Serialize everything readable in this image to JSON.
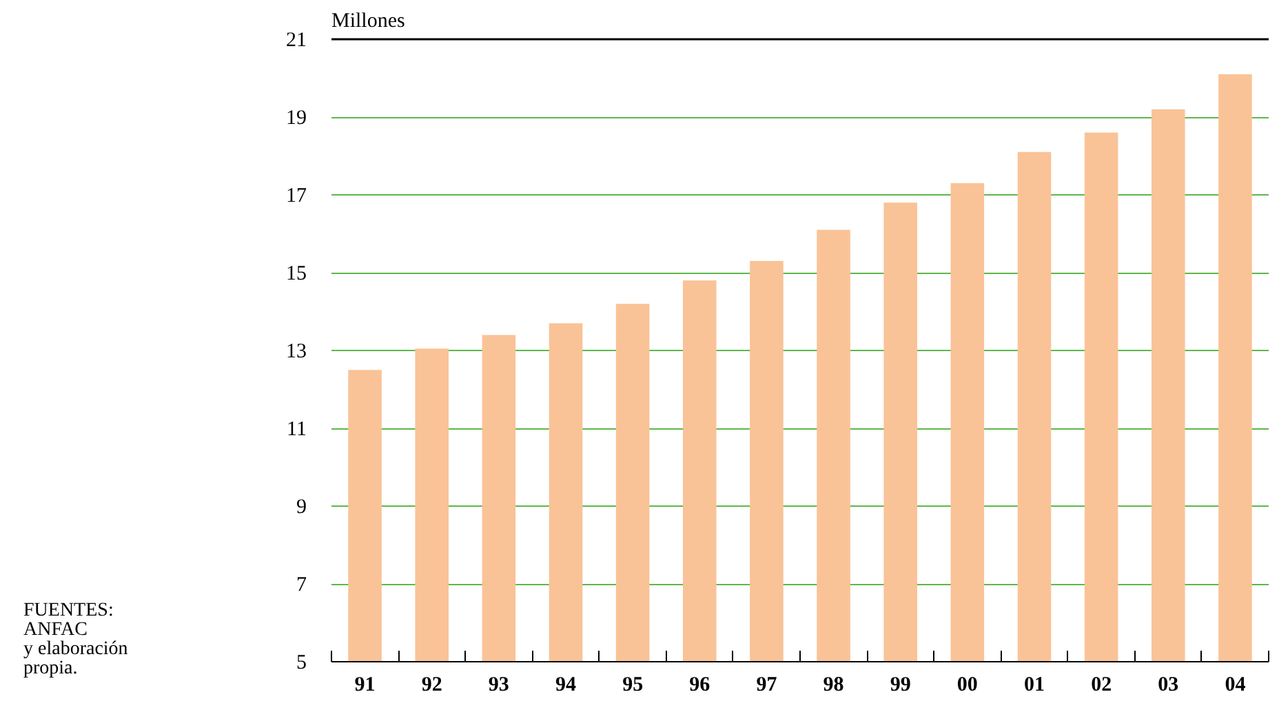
{
  "chart_data": {
    "type": "bar",
    "ylabel": "Millones",
    "categories": [
      "91",
      "92",
      "93",
      "94",
      "95",
      "96",
      "97",
      "98",
      "99",
      "00",
      "01",
      "02",
      "03",
      "04"
    ],
    "values": [
      12.5,
      13.05,
      13.4,
      13.7,
      14.2,
      14.8,
      15.3,
      16.1,
      16.8,
      17.3,
      18.1,
      18.6,
      19.2,
      20.1
    ],
    "color": "#f9c397",
    "ylim": [
      5,
      21
    ],
    "yticks": [
      5,
      7,
      9,
      11,
      13,
      15,
      17,
      19,
      21
    ],
    "grid": "y",
    "annotations": [
      "FUENTES:\nANFAC\ny elaboración\npropia."
    ]
  }
}
